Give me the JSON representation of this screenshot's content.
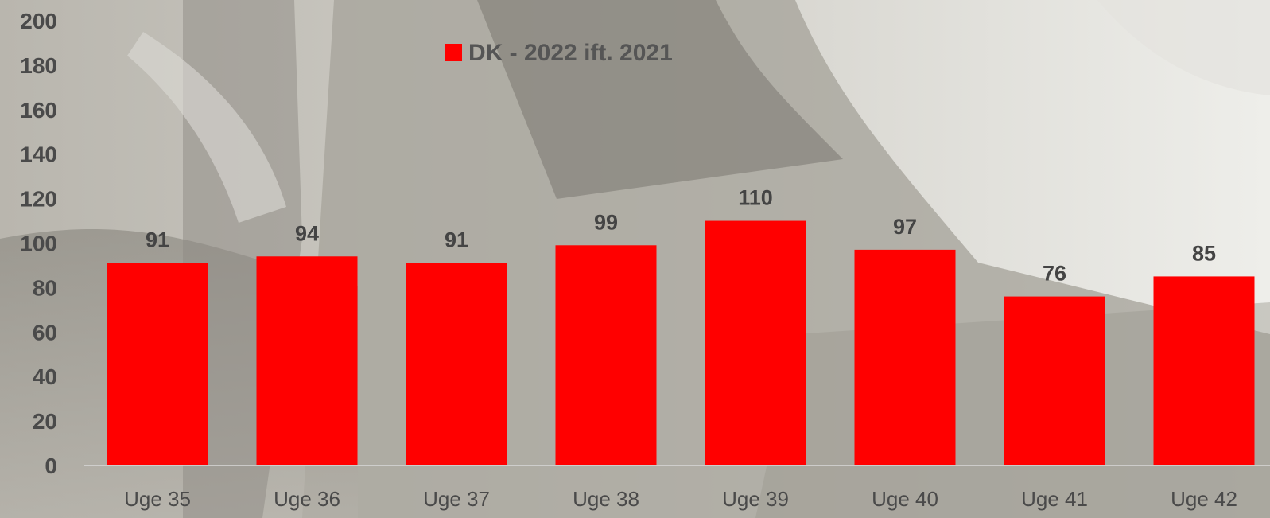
{
  "chart_data": {
    "type": "bar",
    "categories": [
      "Uge 35",
      "Uge 36",
      "Uge 37",
      "Uge 38",
      "Uge 39",
      "Uge 40",
      "Uge 41",
      "Uge 42"
    ],
    "series": [
      {
        "name": "DK - 2022 ift. 2021",
        "values": [
          91,
          94,
          91,
          99,
          110,
          97,
          76,
          85
        ],
        "color": "#ff0000"
      }
    ],
    "ylim": [
      0,
      200
    ],
    "yticks": [
      0,
      20,
      40,
      60,
      80,
      100,
      120,
      140,
      160,
      180,
      200
    ],
    "title": "",
    "xlabel": "",
    "ylabel": "",
    "grid": false,
    "legend_position": "top-center",
    "data_labels": true
  }
}
